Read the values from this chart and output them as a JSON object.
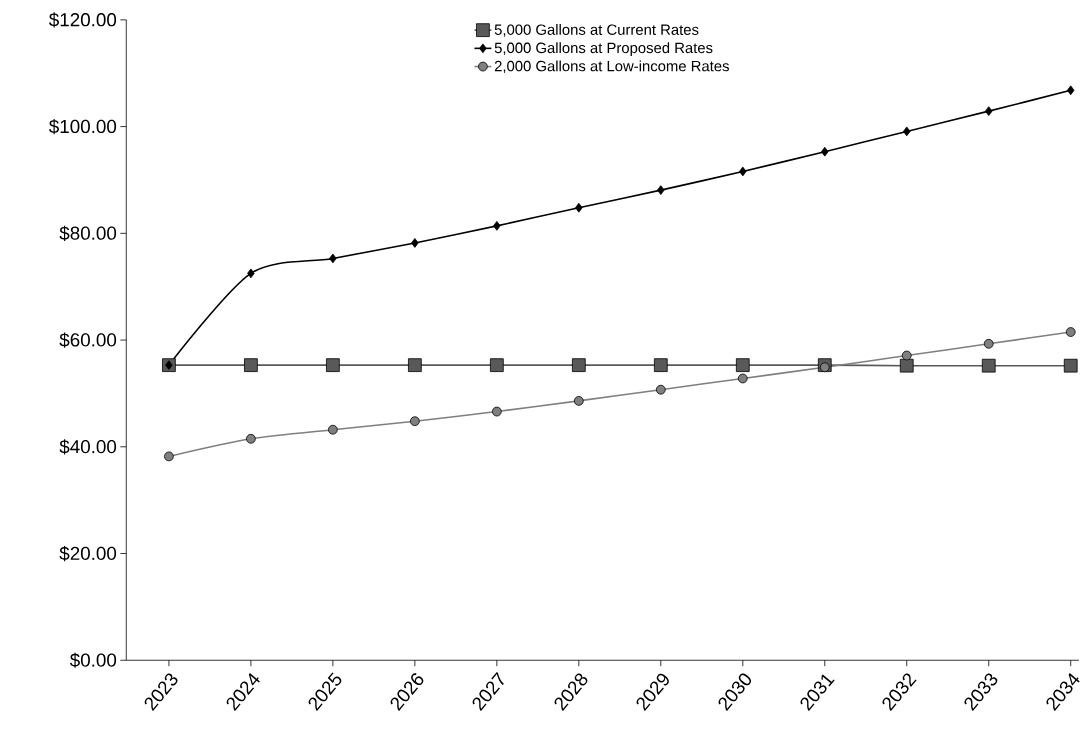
{
  "chart_data": {
    "type": "line",
    "categories": [
      "2023",
      "2024",
      "2025",
      "2026",
      "2027",
      "2028",
      "2029",
      "2030",
      "2031",
      "2032",
      "2033",
      "2034"
    ],
    "series": [
      {
        "name": "5,000 Gallons at Current Rates",
        "color": "#595959",
        "marker": "square",
        "values": [
          55.3,
          55.3,
          55.3,
          55.3,
          55.3,
          55.3,
          55.3,
          55.3,
          55.3,
          55.2,
          55.2,
          55.2
        ]
      },
      {
        "name": "5,000 Gallons at Proposed Rates",
        "color": "#000000",
        "marker": "diamond",
        "values": [
          55.3,
          72.5,
          75.3,
          78.2,
          81.4,
          84.8,
          88.1,
          91.6,
          95.3,
          99.1,
          102.9,
          106.8
        ]
      },
      {
        "name": "2,000 Gallons at Low-income Rates",
        "color": "#7f7f7f",
        "marker": "circle",
        "values": [
          38.2,
          41.5,
          43.2,
          44.8,
          46.6,
          48.6,
          50.7,
          52.8,
          54.9,
          57.1,
          59.3,
          61.5
        ]
      }
    ],
    "ylim": [
      0,
      120
    ],
    "yticks": [
      {
        "value": 0,
        "label": "$0.00"
      },
      {
        "value": 20,
        "label": "$20.00"
      },
      {
        "value": 40,
        "label": "$40.00"
      },
      {
        "value": 60,
        "label": "$60.00"
      },
      {
        "value": 80,
        "label": "$80.00"
      },
      {
        "value": 100,
        "label": "$100.00"
      },
      {
        "value": 120,
        "label": "$120.00"
      }
    ],
    "legend": "top",
    "grid": false
  }
}
